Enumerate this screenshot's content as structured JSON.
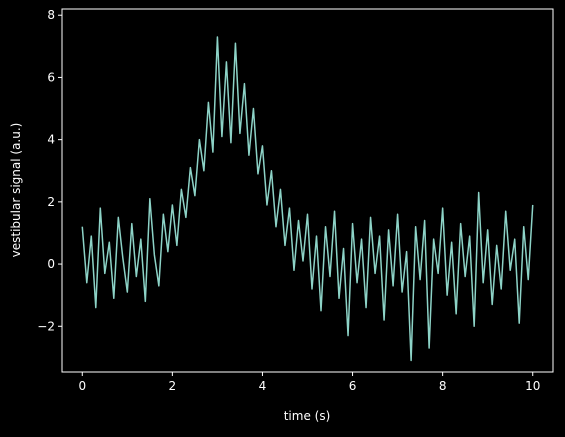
{
  "chart_data": {
    "type": "line",
    "xlabel": "time (s)",
    "ylabel": "vestibular signal (a.u.)",
    "xlim": [
      -0.45,
      10.45
    ],
    "ylim": [
      -3.47,
      8.2
    ],
    "xticks": [
      0,
      2,
      4,
      6,
      8,
      10
    ],
    "yticks": [
      {
        "value": -2,
        "label": "−2"
      },
      0,
      2,
      4,
      6,
      8
    ],
    "grid": false,
    "series": [
      {
        "color": "#8dd3c7",
        "x": [
          0.0,
          0.1,
          0.2,
          0.3,
          0.4,
          0.5,
          0.6,
          0.7,
          0.8,
          0.9,
          1.0,
          1.1,
          1.2,
          1.3,
          1.4,
          1.5,
          1.6,
          1.7,
          1.8,
          1.9,
          2.0,
          2.1,
          2.2,
          2.3,
          2.4,
          2.5,
          2.6,
          2.7,
          2.8,
          2.9,
          3.0,
          3.1,
          3.2,
          3.3,
          3.4,
          3.5,
          3.6,
          3.7,
          3.8,
          3.9,
          4.0,
          4.1,
          4.2,
          4.3,
          4.4,
          4.5,
          4.6,
          4.7,
          4.8,
          4.9,
          5.0,
          5.1,
          5.2,
          5.3,
          5.4,
          5.5,
          5.6,
          5.7,
          5.8,
          5.9,
          6.0,
          6.1,
          6.2,
          6.3,
          6.4,
          6.5,
          6.6,
          6.7,
          6.8,
          6.9,
          7.0,
          7.1,
          7.2,
          7.3,
          7.4,
          7.5,
          7.6,
          7.7,
          7.8,
          7.9,
          8.0,
          8.1,
          8.2,
          8.3,
          8.4,
          8.5,
          8.6,
          8.7,
          8.8,
          8.9,
          9.0,
          9.1,
          9.2,
          9.3,
          9.4,
          9.5,
          9.6,
          9.7,
          9.8,
          9.9,
          10.0
        ],
        "values": [
          1.2,
          -0.6,
          0.9,
          -1.4,
          1.8,
          -0.3,
          0.7,
          -1.1,
          1.5,
          0.2,
          -0.9,
          1.3,
          -0.4,
          0.8,
          -1.2,
          2.1,
          0.3,
          -0.7,
          1.6,
          0.4,
          1.9,
          0.6,
          2.4,
          1.5,
          3.1,
          2.2,
          4.0,
          3.0,
          5.2,
          3.6,
          7.3,
          4.1,
          6.5,
          3.9,
          7.1,
          4.2,
          5.8,
          3.5,
          5.0,
          2.9,
          3.8,
          1.9,
          3.0,
          1.2,
          2.4,
          0.6,
          1.8,
          -0.2,
          1.4,
          0.1,
          1.6,
          -0.8,
          0.9,
          -1.5,
          1.2,
          -0.4,
          1.7,
          -1.1,
          0.5,
          -2.3,
          1.3,
          -0.6,
          0.8,
          -1.4,
          1.5,
          -0.3,
          0.9,
          -1.8,
          1.1,
          -0.7,
          1.6,
          -0.9,
          0.4,
          -3.1,
          1.2,
          -0.5,
          1.4,
          -2.7,
          0.8,
          -0.3,
          1.8,
          -1.0,
          0.7,
          -1.6,
          1.3,
          -0.4,
          0.9,
          -2.0,
          2.3,
          -0.6,
          1.1,
          -1.3,
          0.6,
          -0.8,
          1.7,
          -0.2,
          0.8,
          -1.9,
          1.2,
          -0.5,
          1.9
        ]
      }
    ]
  }
}
